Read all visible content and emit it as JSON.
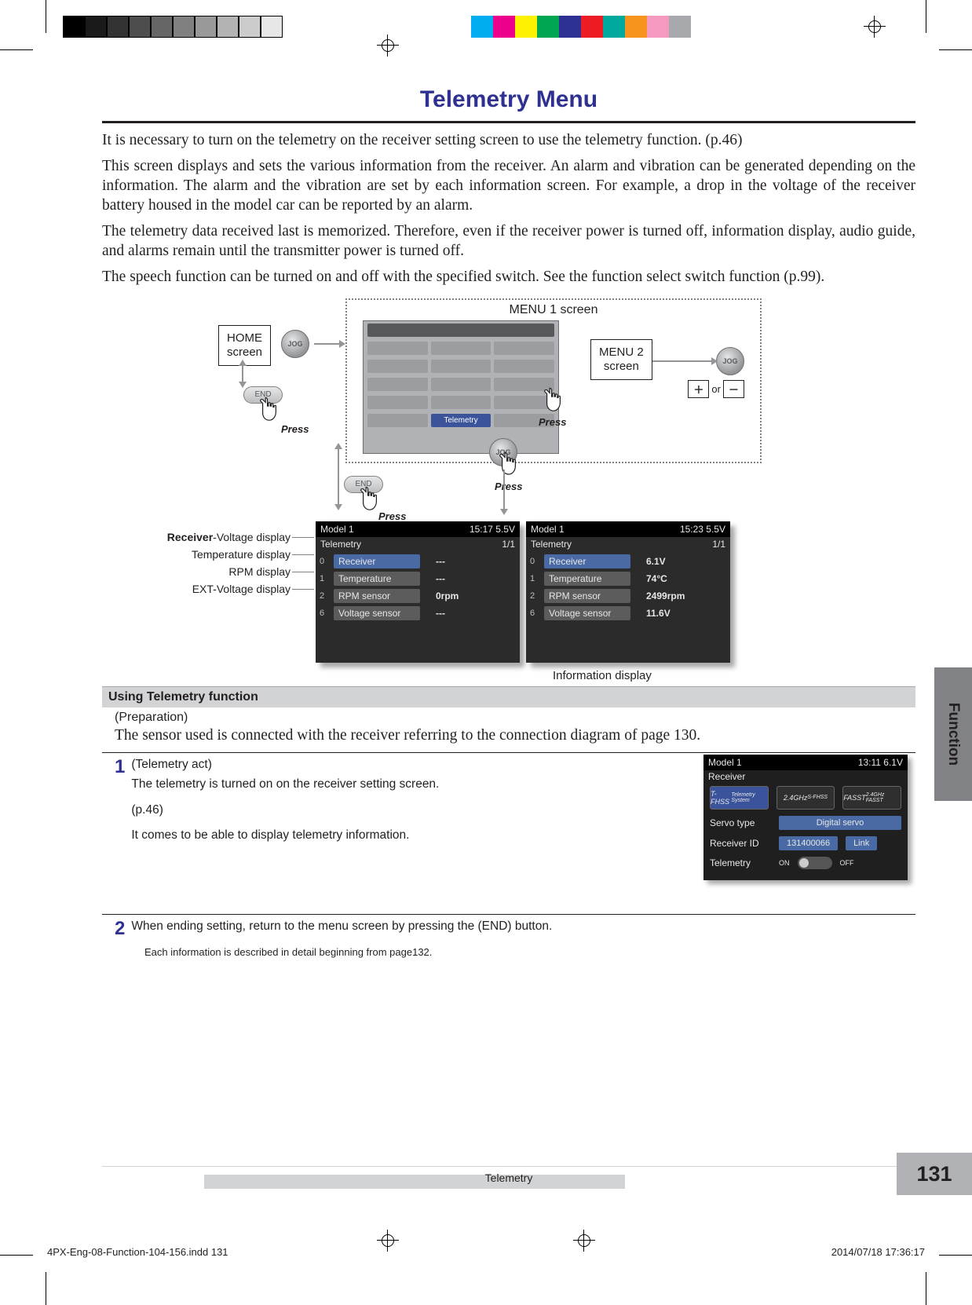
{
  "print": {
    "grays": [
      "#000000",
      "#1a1a1a",
      "#333333",
      "#4d4d4d",
      "#666666",
      "#808080",
      "#999999",
      "#b3b3b3",
      "#cccccc",
      "#e6e6e6"
    ],
    "colors": [
      "#00aeef",
      "#ec008c",
      "#fff200",
      "#00a651",
      "#2e3192",
      "#ed1c24",
      "#00a99d",
      "#f7941d",
      "#f49ac1",
      "#a7a9ac"
    ],
    "file": "4PX-Eng-08-Function-104-156.indd   131",
    "timestamp": "2014/07/18   17:36:17"
  },
  "title": "Telemetry Menu",
  "paras": [
    "It is necessary to turn on the telemetry on the receiver setting screen to use the telemetry function. (p.46)",
    "This screen displays and sets the various information from the receiver. An alarm and vibration can be generated depending on the information. The alarm and the vibration are set by each information screen. For example, a drop in the voltage of the receiver battery housed in the model car can be reported by an alarm.",
    "The telemetry data received last is memorized. Therefore, even if the receiver power is turned off, information display, audio guide, and alarms remain until the transmitter power is turned off.",
    "The speech function can be turned on and off with the specified switch. See the function select switch function (p.99)."
  ],
  "diagram": {
    "menu1": "MENU 1 screen",
    "home": "HOME\nscreen",
    "menu2": "MENU 2\nscreen",
    "press": "Press",
    "or": "or",
    "jog": "JOG",
    "end": "END",
    "telemetry_btn": "Telemetry",
    "labels": {
      "receiver": "Receiver-Voltage display",
      "temperature": "Temperature display",
      "rpm": "RPM display",
      "ext": "EXT-Voltage display",
      "info": "Information display"
    },
    "tel_left": {
      "model": "Model 1",
      "time": "15:17 5.5V",
      "name": "Telemetry",
      "page": "1/1",
      "rows": [
        {
          "idx": "0",
          "name": "Receiver",
          "val": "---",
          "sel": true
        },
        {
          "idx": "1",
          "name": "Temperature",
          "val": "---"
        },
        {
          "idx": "2",
          "name": "RPM sensor",
          "val": "0rpm"
        },
        {
          "idx": "6",
          "name": "Voltage sensor",
          "val": "---"
        }
      ]
    },
    "tel_right": {
      "model": "Model 1",
      "time": "15:23 5.5V",
      "name": "Telemetry",
      "page": "1/1",
      "rows": [
        {
          "idx": "0",
          "name": "Receiver",
          "val": "6.1V",
          "sel": true
        },
        {
          "idx": "1",
          "name": "Temperature",
          "val": "74°C"
        },
        {
          "idx": "2",
          "name": "RPM sensor",
          "val": "2499rpm"
        },
        {
          "idx": "6",
          "name": "Voltage sensor",
          "val": "11.6V"
        }
      ]
    }
  },
  "section": {
    "header": "Using Telemetry function",
    "prep": "(Preparation)",
    "prep_text": "The sensor used is connected with the receiver referring to the connection diagram of page 130.",
    "step1": {
      "num": "1",
      "title": "(Telemetry act)",
      "l1": "The telemetry is turned on on the receiver setting screen.",
      "l2": "(p.46)",
      "l3": "It comes to be able to display telemetry information."
    },
    "step2": {
      "num": "2",
      "text": "When ending setting, return to the menu screen by pressing the (END) button.",
      "note": "Each information is described in detail beginning from page132."
    }
  },
  "receiver_panel": {
    "model": "Model 1",
    "time": "13:11 6.1V",
    "title": "Receiver",
    "badges": [
      "T-FHSS",
      "2.4GHz",
      "FASST"
    ],
    "badges_sub": [
      "Telemetry System",
      "S-FHSS",
      "2.4GHz FASST"
    ],
    "servo_lbl": "Servo type",
    "servo_val": "Digital servo",
    "rxid_lbl": "Receiver ID",
    "rxid_val": "131400066",
    "link": "Link",
    "tel_lbl": "Telemetry",
    "on": "ON",
    "off": "OFF"
  },
  "footer": {
    "center": "Telemetry",
    "page": "131",
    "tab": "Function"
  }
}
